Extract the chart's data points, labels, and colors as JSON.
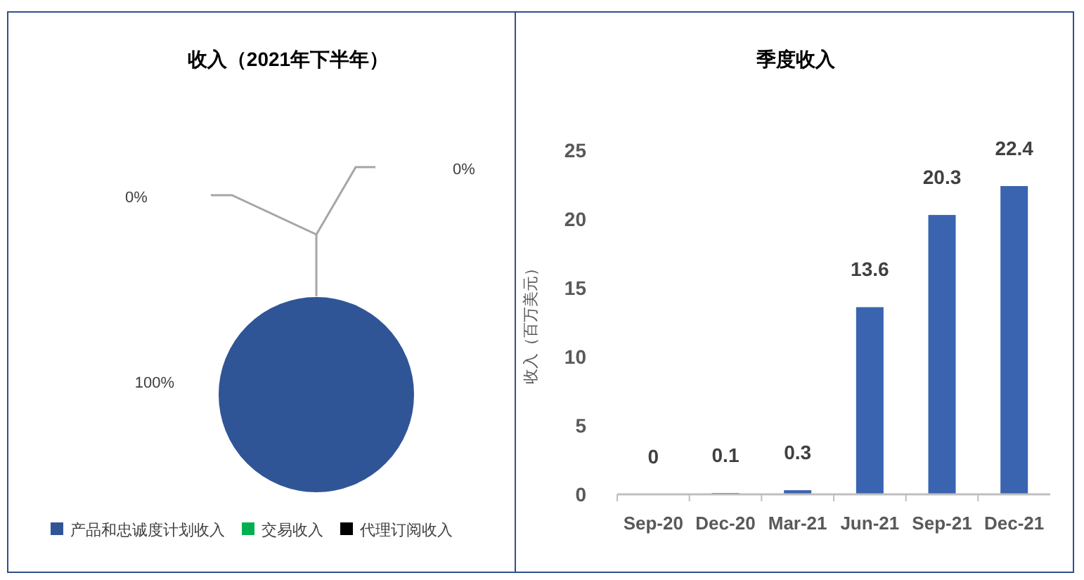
{
  "chart_data": [
    {
      "type": "pie",
      "title": "收入（2021年下半年）",
      "categories": [
        "产品和忠诚度计划收入",
        "交易收入",
        "代理订阅收入"
      ],
      "values": [
        100,
        0,
        0
      ],
      "colors": [
        "#2f5597",
        "#00b050",
        "#000000"
      ],
      "value_labels": [
        "100%",
        "0%",
        "0%"
      ],
      "legend": "bottom"
    },
    {
      "type": "bar",
      "title": "季度收入",
      "ylabel": "收入（百万美元）",
      "categories": [
        "Sep-20",
        "Dec-20",
        "Mar-21",
        "Jun-21",
        "Sep-21",
        "Dec-21"
      ],
      "values": [
        0,
        0.1,
        0.3,
        13.6,
        20.3,
        22.4
      ],
      "color": "#3a64b0",
      "ylim": [
        0,
        25
      ],
      "yticks": [
        0,
        5,
        10,
        15,
        20,
        25
      ],
      "data_labels": true,
      "grid": false
    }
  ]
}
